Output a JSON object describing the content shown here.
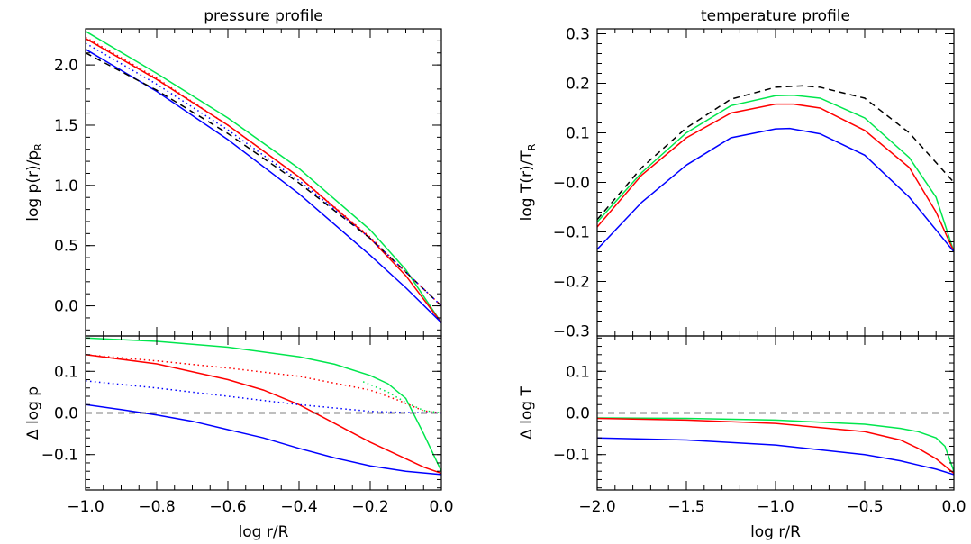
{
  "chart_data": [
    {
      "id": "pressure-top",
      "type": "line",
      "title": "pressure profile",
      "xlabel": "",
      "ylabel": "log p(r)/p",
      "ylabel_sub": "R",
      "xlim": [
        -1.0,
        0.0
      ],
      "ylim": [
        -0.25,
        2.3
      ],
      "xticks": [
        -1.0,
        -0.8,
        -0.6,
        -0.4,
        -0.2,
        0.0
      ],
      "xtick_labels": [],
      "yticks": [
        0.0,
        0.5,
        1.0,
        1.5,
        2.0
      ],
      "ytick_labels": [
        "0.0",
        "0.5",
        "1.0",
        "1.5",
        "2.0"
      ],
      "x_minor": 0.05,
      "y_minor": 0.1,
      "series": [
        {
          "color": "#00e64d",
          "dash": "solid",
          "x": [
            -1.0,
            -0.8,
            -0.6,
            -0.4,
            -0.2,
            -0.1,
            0.0
          ],
          "y": [
            2.28,
            1.93,
            1.56,
            1.14,
            0.63,
            0.3,
            -0.14
          ]
        },
        {
          "color": "#ff0000",
          "dash": "solid",
          "x": [
            -1.0,
            -0.8,
            -0.6,
            -0.4,
            -0.2,
            -0.1,
            0.0
          ],
          "y": [
            2.22,
            1.88,
            1.5,
            1.07,
            0.56,
            0.25,
            -0.14
          ]
        },
        {
          "color": "#0000ff",
          "dash": "solid",
          "x": [
            -1.0,
            -0.8,
            -0.6,
            -0.4,
            -0.2,
            -0.1,
            0.0
          ],
          "y": [
            2.13,
            1.78,
            1.38,
            0.93,
            0.42,
            0.15,
            -0.14
          ]
        },
        {
          "color": "#000000",
          "dash": "dashed",
          "x": [
            -1.0,
            -0.8,
            -0.6,
            -0.4,
            -0.2,
            -0.1,
            0.0
          ],
          "y": [
            2.1,
            1.79,
            1.43,
            1.02,
            0.56,
            0.28,
            0.0
          ]
        },
        {
          "color": "#ff0000",
          "dash": "dotted",
          "x": [
            -1.0,
            -0.8,
            -0.6,
            -0.4,
            -0.2,
            -0.1,
            0.0
          ],
          "y": [
            2.23,
            1.89,
            1.5,
            1.07,
            0.57,
            0.28,
            0.0
          ]
        },
        {
          "color": "#0000ff",
          "dash": "dotted",
          "x": [
            -1.0,
            -0.8,
            -0.6,
            -0.4,
            -0.2,
            -0.1,
            0.0
          ],
          "y": [
            2.18,
            1.84,
            1.46,
            1.04,
            0.56,
            0.28,
            0.0
          ]
        }
      ]
    },
    {
      "id": "pressure-bottom",
      "type": "line",
      "title": "",
      "xlabel": "log r/R",
      "ylabel": "Δ log p",
      "xlim": [
        -1.0,
        0.0
      ],
      "ylim": [
        -0.185,
        0.185
      ],
      "xticks": [
        -1.0,
        -0.8,
        -0.6,
        -0.4,
        -0.2,
        0.0
      ],
      "xtick_labels": [
        "−1.0",
        "−0.8",
        "−0.6",
        "−0.4",
        "−0.2",
        "0.0"
      ],
      "yticks": [
        -0.1,
        0.0,
        0.1
      ],
      "ytick_labels": [
        "−0.1",
        "0.0",
        "0.1"
      ],
      "x_minor": 0.05,
      "y_minor": 0.02,
      "series": [
        {
          "color": "#00e64d",
          "dash": "solid",
          "x": [
            -1.0,
            -0.8,
            -0.6,
            -0.4,
            -0.3,
            -0.2,
            -0.15,
            -0.1,
            -0.05,
            0.0
          ],
          "y": [
            0.18,
            0.172,
            0.158,
            0.135,
            0.117,
            0.09,
            0.07,
            0.035,
            -0.05,
            -0.14
          ]
        },
        {
          "color": "#ff0000",
          "dash": "solid",
          "x": [
            -1.0,
            -0.8,
            -0.6,
            -0.5,
            -0.4,
            -0.3,
            -0.2,
            -0.1,
            -0.05,
            0.0
          ],
          "y": [
            0.14,
            0.118,
            0.08,
            0.055,
            0.02,
            -0.025,
            -0.07,
            -0.11,
            -0.13,
            -0.145
          ]
        },
        {
          "color": "#0000ff",
          "dash": "solid",
          "x": [
            -1.0,
            -0.9,
            -0.8,
            -0.7,
            -0.6,
            -0.5,
            -0.4,
            -0.3,
            -0.2,
            -0.1,
            0.0
          ],
          "y": [
            0.02,
            0.008,
            -0.005,
            -0.02,
            -0.04,
            -0.06,
            -0.085,
            -0.108,
            -0.127,
            -0.14,
            -0.148
          ]
        },
        {
          "color": "#000000",
          "dash": "dashed",
          "x": [
            -1.0,
            0.0
          ],
          "y": [
            0.0,
            0.0
          ]
        },
        {
          "color": "#ff0000",
          "dash": "dotted",
          "x": [
            -1.0,
            -0.8,
            -0.6,
            -0.4,
            -0.2,
            -0.12,
            -0.05,
            0.0
          ],
          "y": [
            0.14,
            0.125,
            0.108,
            0.088,
            0.055,
            0.03,
            0.005,
            0.0
          ]
        },
        {
          "color": "#00e64d",
          "dash": "dotted",
          "x": [
            -0.22,
            -0.15,
            -0.1,
            -0.05,
            0.0
          ],
          "y": [
            0.075,
            0.05,
            0.025,
            0.006,
            0.0
          ]
        },
        {
          "color": "#0000ff",
          "dash": "dotted",
          "x": [
            -1.0,
            -0.8,
            -0.6,
            -0.4,
            -0.2,
            -0.1,
            0.0
          ],
          "y": [
            0.077,
            0.06,
            0.04,
            0.02,
            0.004,
            0.001,
            0.0
          ]
        }
      ]
    },
    {
      "id": "temperature-top",
      "type": "line",
      "title": "temperature profile",
      "xlabel": "",
      "ylabel": "log T(r)/T",
      "ylabel_sub": "R",
      "xlim": [
        -2.0,
        0.0
      ],
      "ylim": [
        -0.31,
        0.31
      ],
      "xticks": [
        -2.0,
        -1.5,
        -1.0,
        -0.5,
        0.0
      ],
      "xtick_labels": [],
      "yticks": [
        -0.3,
        -0.2,
        -0.1,
        0.0,
        0.1,
        0.2,
        0.3
      ],
      "ytick_labels": [
        "−0.3",
        "−0.2",
        "−0.1",
        "−0.0",
        "0.1",
        "0.2",
        "0.3"
      ],
      "x_minor": 0.1,
      "y_minor": 0.02,
      "series": [
        {
          "color": "#000000",
          "dash": "dashed",
          "x": [
            -2.0,
            -1.75,
            -1.5,
            -1.25,
            -1.0,
            -0.85,
            -0.75,
            -0.5,
            -0.25,
            0.0
          ],
          "y": [
            -0.075,
            0.03,
            0.11,
            0.168,
            0.192,
            0.195,
            0.192,
            0.17,
            0.1,
            0.0
          ]
        },
        {
          "color": "#00e64d",
          "dash": "solid",
          "x": [
            -2.0,
            -1.75,
            -1.5,
            -1.25,
            -1.0,
            -0.9,
            -0.75,
            -0.5,
            -0.25,
            -0.1,
            0.0
          ],
          "y": [
            -0.08,
            0.02,
            0.1,
            0.155,
            0.175,
            0.176,
            0.17,
            0.13,
            0.05,
            -0.03,
            -0.14
          ]
        },
        {
          "color": "#ff0000",
          "dash": "solid",
          "x": [
            -2.0,
            -1.75,
            -1.5,
            -1.25,
            -1.0,
            -0.9,
            -0.75,
            -0.5,
            -0.25,
            -0.1,
            0.0
          ],
          "y": [
            -0.09,
            0.015,
            0.09,
            0.14,
            0.158,
            0.158,
            0.15,
            0.105,
            0.03,
            -0.06,
            -0.14
          ]
        },
        {
          "color": "#0000ff",
          "dash": "solid",
          "x": [
            -2.0,
            -1.75,
            -1.5,
            -1.25,
            -1.0,
            -0.92,
            -0.75,
            -0.5,
            -0.25,
            0.0
          ],
          "y": [
            -0.135,
            -0.04,
            0.035,
            0.09,
            0.108,
            0.109,
            0.098,
            0.055,
            -0.03,
            -0.14
          ]
        }
      ]
    },
    {
      "id": "temperature-bottom",
      "type": "line",
      "title": "",
      "xlabel": "log r/R",
      "ylabel": "Δ log T",
      "xlim": [
        -2.0,
        0.0
      ],
      "ylim": [
        -0.185,
        0.185
      ],
      "xticks": [
        -2.0,
        -1.5,
        -1.0,
        -0.5,
        0.0
      ],
      "xtick_labels": [
        "−2.0",
        "−1.5",
        "−1.0",
        "−0.5",
        "0.0"
      ],
      "yticks": [
        -0.1,
        0.0,
        0.1
      ],
      "ytick_labels": [
        "−0.1",
        "0.0",
        "0.1"
      ],
      "x_minor": 0.1,
      "y_minor": 0.02,
      "series": [
        {
          "color": "#000000",
          "dash": "dashed",
          "x": [
            -2.0,
            0.0
          ],
          "y": [
            0.0,
            0.0
          ]
        },
        {
          "color": "#00e64d",
          "dash": "solid",
          "x": [
            -2.0,
            -1.5,
            -1.0,
            -0.5,
            -0.3,
            -0.2,
            -0.1,
            -0.05,
            0.0
          ],
          "y": [
            -0.012,
            -0.013,
            -0.017,
            -0.027,
            -0.037,
            -0.045,
            -0.06,
            -0.08,
            -0.14
          ]
        },
        {
          "color": "#ff0000",
          "dash": "solid",
          "x": [
            -2.0,
            -1.5,
            -1.0,
            -0.5,
            -0.3,
            -0.2,
            -0.1,
            0.0
          ],
          "y": [
            -0.013,
            -0.017,
            -0.025,
            -0.045,
            -0.065,
            -0.085,
            -0.11,
            -0.145
          ]
        },
        {
          "color": "#0000ff",
          "dash": "solid",
          "x": [
            -2.0,
            -1.5,
            -1.0,
            -0.5,
            -0.3,
            -0.2,
            -0.1,
            0.0
          ],
          "y": [
            -0.06,
            -0.065,
            -0.077,
            -0.1,
            -0.115,
            -0.125,
            -0.135,
            -0.148
          ]
        }
      ]
    }
  ]
}
